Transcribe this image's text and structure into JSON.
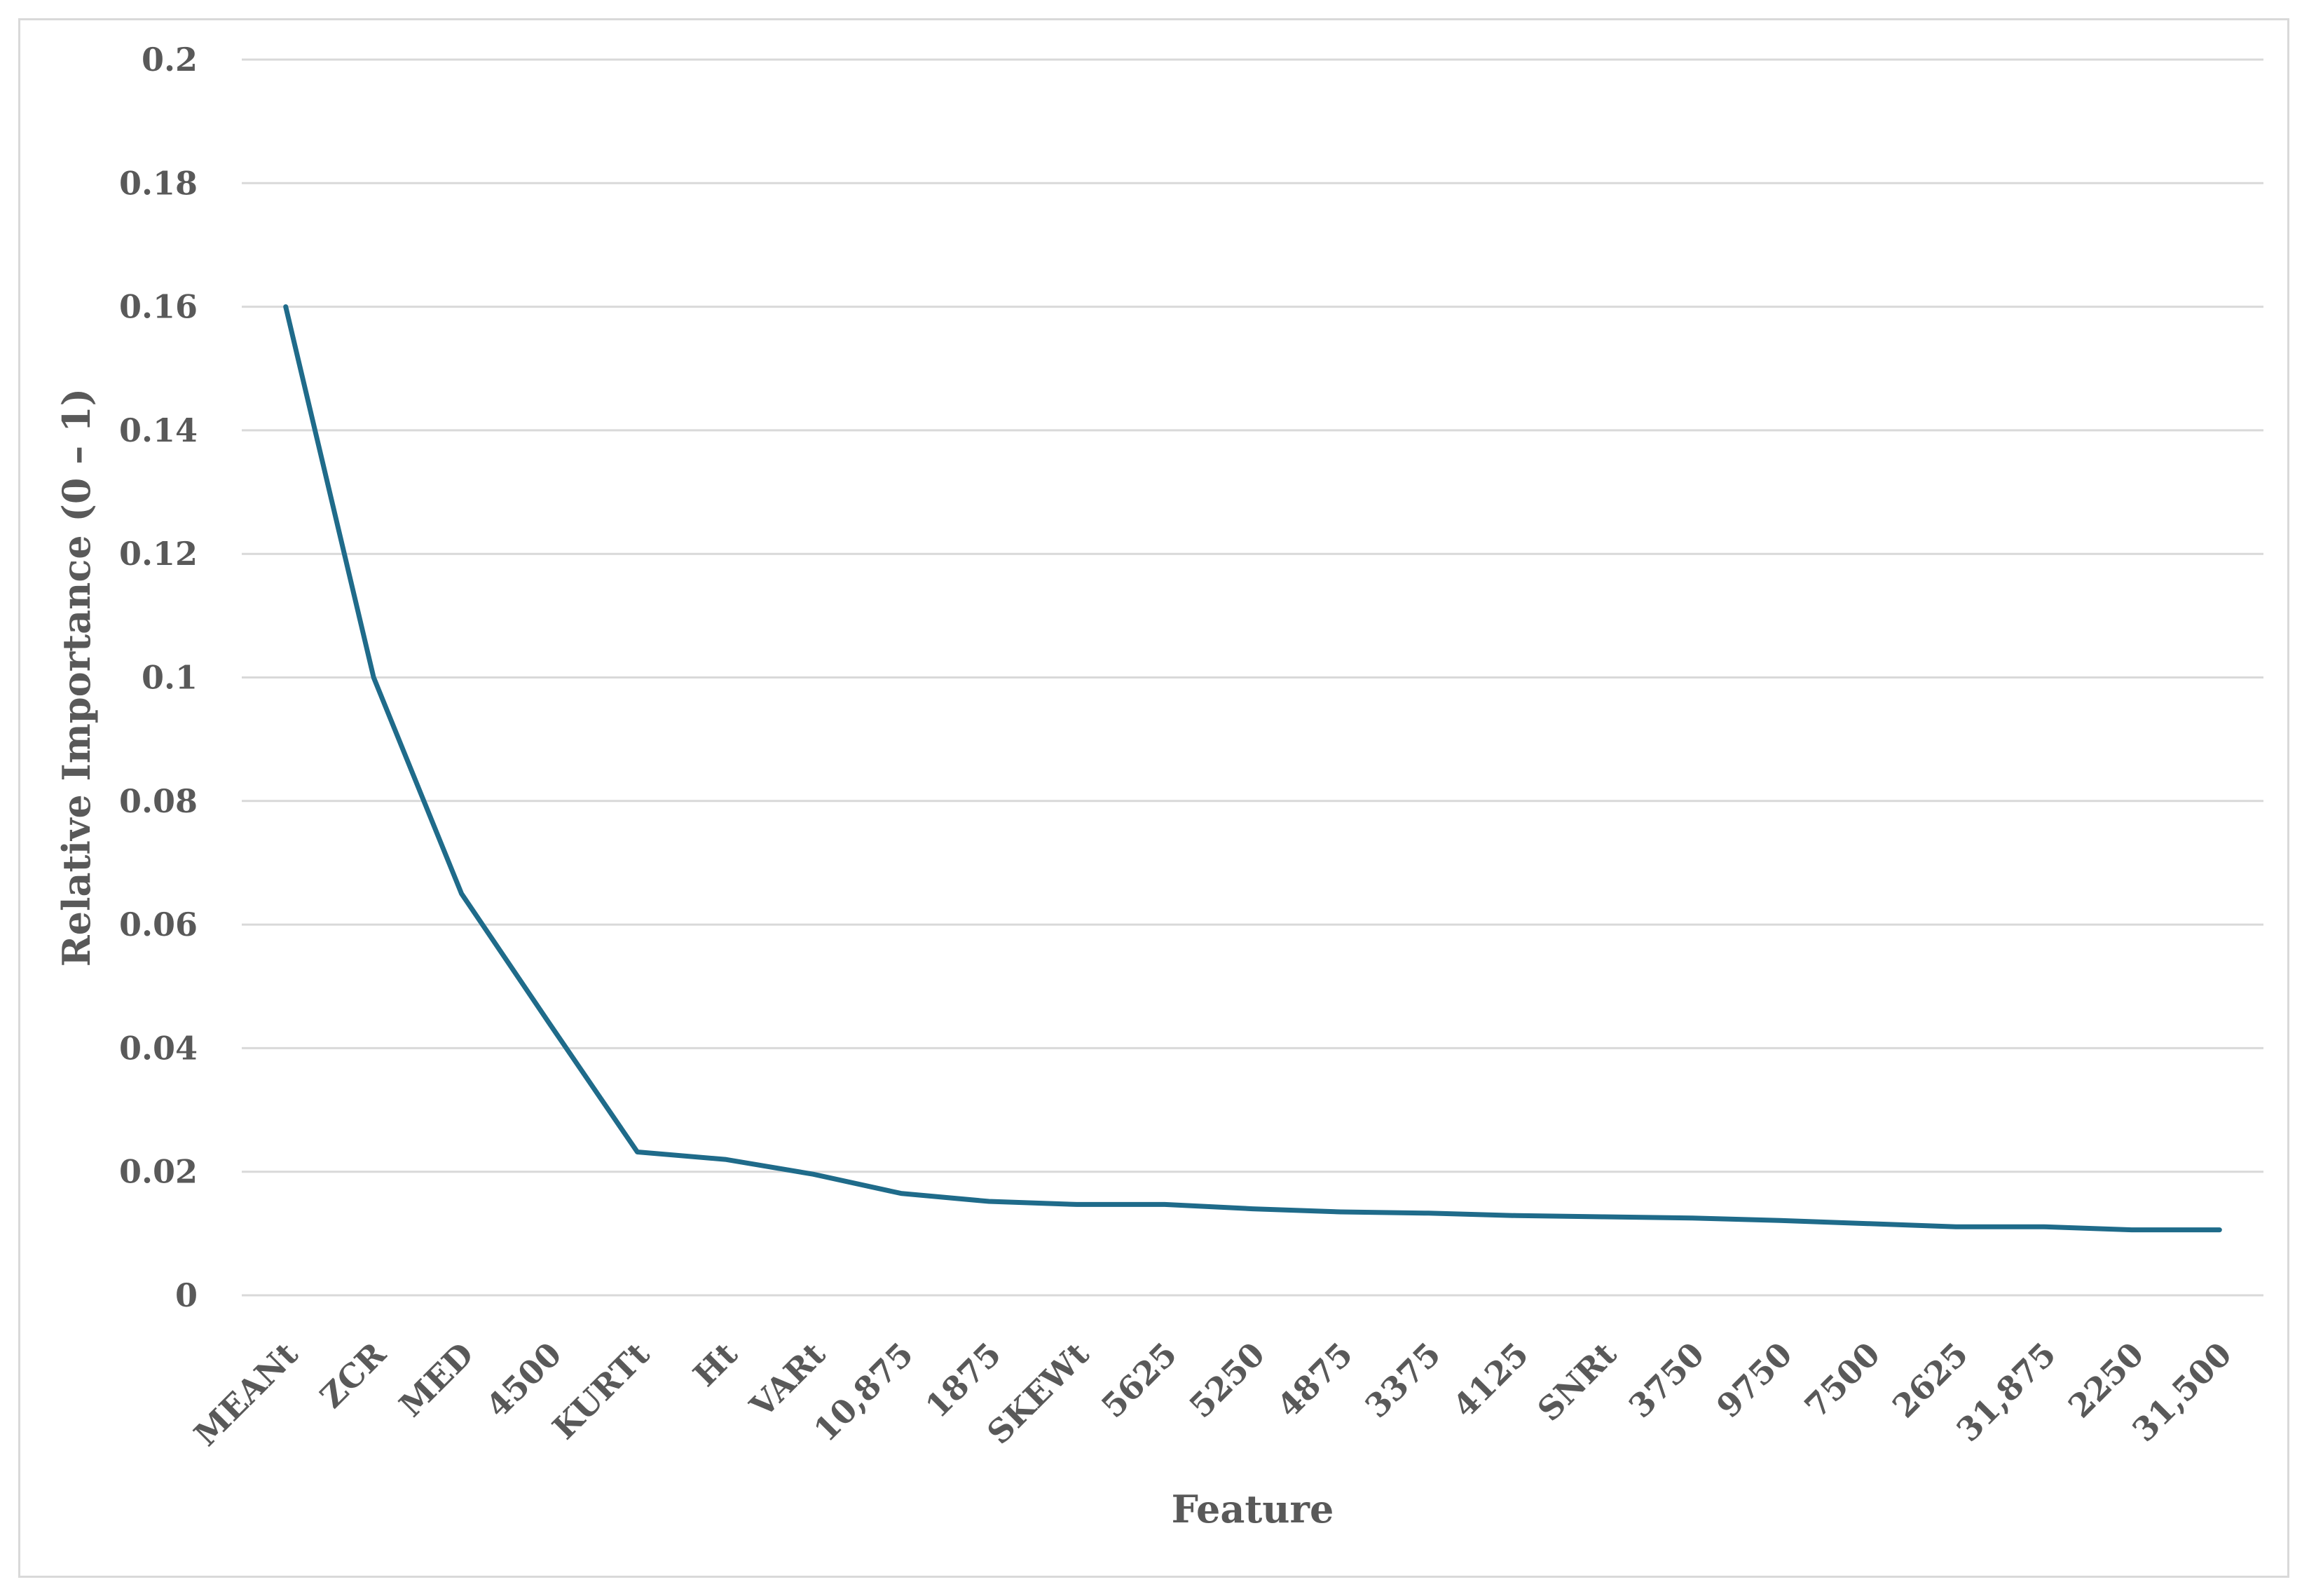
{
  "chart_data": {
    "type": "line",
    "title": "",
    "xlabel": "Feature",
    "ylabel": "Relative Importance (0 – 1)",
    "ylim": [
      0,
      0.2
    ],
    "yticks": [
      "0",
      "0.02",
      "0.04",
      "0.06",
      "0.08",
      "0.1",
      "0.12",
      "0.14",
      "0.16",
      "0.18",
      "0.2"
    ],
    "grid": true,
    "legend": "none",
    "categories": [
      "MEANt",
      "ZCR",
      "MED",
      "4500",
      "KURTt",
      "Ht",
      "VARt",
      "10,875",
      "1875",
      "SKEWt",
      "5625",
      "5250",
      "4875",
      "3375",
      "4125",
      "SNRt",
      "3750",
      "9750",
      "7500",
      "2625",
      "31,875",
      "2250",
      "31,500"
    ],
    "series": [
      {
        "values": [
          0.16,
          0.1,
          0.065,
          0.044,
          0.0232,
          0.022,
          0.0196,
          0.0165,
          0.0152,
          0.0147,
          0.0147,
          0.014,
          0.0135,
          0.0133,
          0.0129,
          0.0127,
          0.0125,
          0.0121,
          0.0116,
          0.0111,
          0.0111,
          0.0106,
          0.0106
        ]
      }
    ],
    "colors": {
      "line": "#1f6b8a",
      "grid": "#d9d9d9",
      "text": "#595959"
    }
  }
}
